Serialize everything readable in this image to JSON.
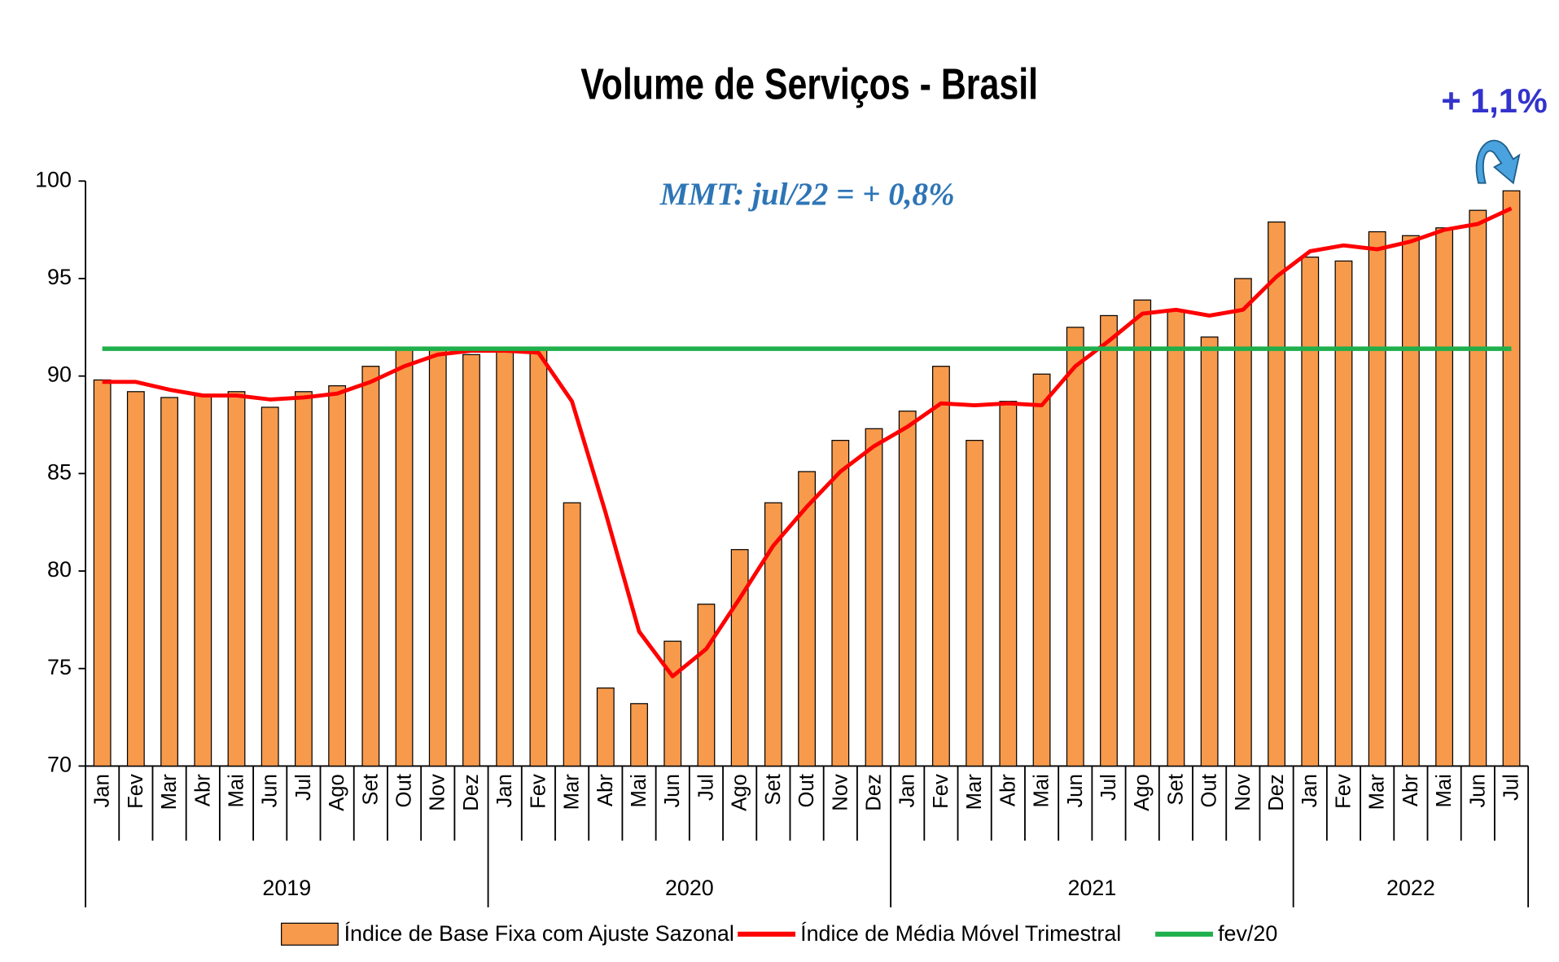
{
  "chart_data": {
    "type": "bar_line",
    "title": "Volume de Serviços - Brasil",
    "annotations": [
      "MMT: jul/22 =  + 0,8%",
      "+ 1,1%"
    ],
    "categories": [
      "Jan",
      "Fev",
      "Mar",
      "Abr",
      "Mai",
      "Jun",
      "Jul",
      "Ago",
      "Set",
      "Out",
      "Nov",
      "Dez",
      "Jan",
      "Fev",
      "Mar",
      "Abr",
      "Mai",
      "Jun",
      "Jul",
      "Ago",
      "Set",
      "Out",
      "Nov",
      "Dez",
      "Jan",
      "Fev",
      "Mar",
      "Abr",
      "Mai",
      "Jun",
      "Jul",
      "Ago",
      "Set",
      "Out",
      "Nov",
      "Dez",
      "Jan",
      "Fev",
      "Mar",
      "Abr",
      "Mai",
      "Jun",
      "Jul"
    ],
    "years": [
      "2019",
      "2020",
      "2021",
      "2022"
    ],
    "series": [
      {
        "name": "Índice de Base Fixa com Ajuste Sazonal",
        "type": "bar",
        "color": "#f79a4c",
        "values": [
          89.8,
          89.2,
          88.9,
          89.0,
          89.2,
          88.4,
          89.2,
          89.5,
          90.5,
          91.4,
          91.4,
          91.1,
          91.4,
          91.4,
          83.5,
          74.0,
          73.2,
          76.4,
          78.3,
          81.1,
          83.5,
          85.1,
          86.7,
          87.3,
          88.2,
          90.5,
          86.7,
          88.7,
          90.1,
          92.5,
          93.1,
          93.9,
          93.4,
          92.0,
          95.0,
          97.9,
          96.1,
          95.9,
          97.4,
          97.2,
          97.6,
          98.5,
          99.5
        ]
      },
      {
        "name": "Índice de Média Móvel Trimestral",
        "type": "line",
        "color": "#ff0000",
        "values": [
          89.7,
          89.7,
          89.3,
          89.0,
          89.0,
          88.8,
          88.9,
          89.1,
          89.7,
          90.5,
          91.1,
          91.3,
          91.3,
          91.2,
          88.7,
          83.0,
          76.9,
          74.6,
          76.0,
          78.6,
          81.3,
          83.3,
          85.1,
          86.4,
          87.4,
          88.6,
          88.5,
          88.6,
          88.5,
          90.5,
          91.8,
          93.2,
          93.4,
          93.1,
          93.4,
          95.1,
          96.4,
          96.7,
          96.5,
          96.9,
          97.5,
          97.8,
          98.6
        ]
      },
      {
        "name": "fev/20",
        "type": "hline",
        "color": "#1faf4b",
        "value": 91.4
      }
    ],
    "ylim": [
      70,
      100
    ],
    "yticks": [
      70,
      75,
      80,
      85,
      90,
      95,
      100
    ],
    "grid": false,
    "legend": "bottom"
  }
}
